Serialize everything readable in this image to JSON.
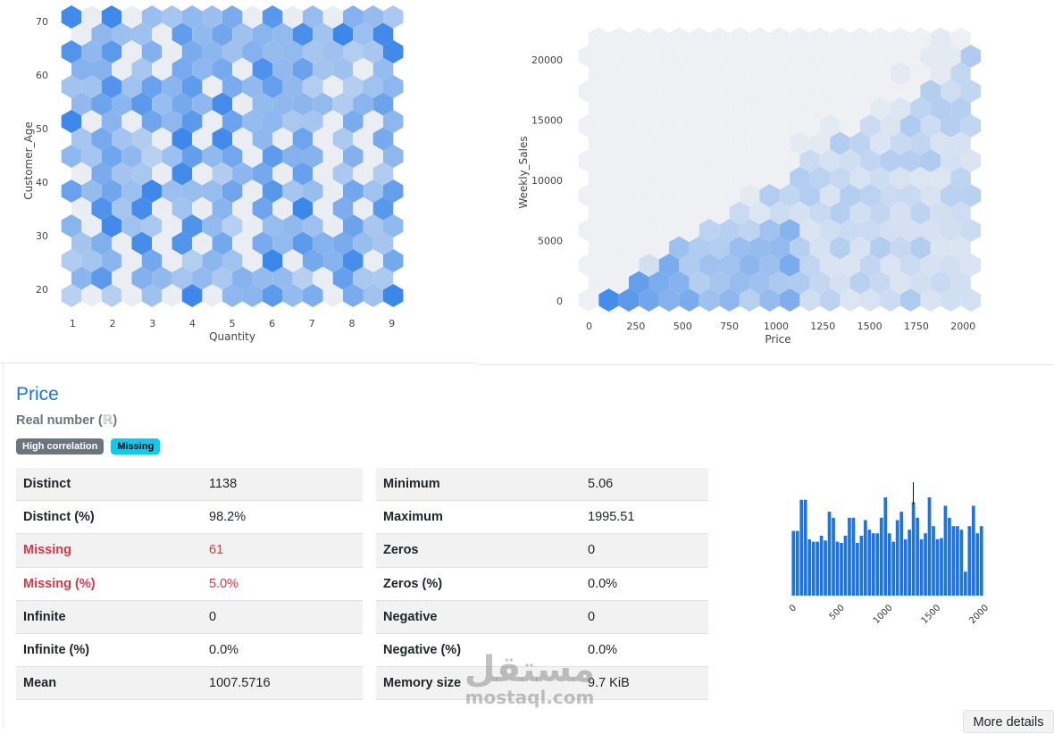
{
  "chart_data": [
    {
      "type": "hexbin",
      "xlabel": "Quantity",
      "ylabel": "Customer_Age",
      "xticks": [
        1,
        2,
        3,
        4,
        5,
        6,
        7,
        8,
        9
      ],
      "yticks": [
        20,
        30,
        40,
        50,
        60,
        70
      ],
      "xlim": [
        0.7,
        9.3
      ],
      "ylim": [
        17,
        71
      ],
      "color": "#1a73e8"
    },
    {
      "type": "hexbin",
      "xlabel": "Price",
      "ylabel": "Weekly_Sales",
      "xticks": [
        0,
        250,
        500,
        750,
        1000,
        1250,
        1500,
        1750,
        2000
      ],
      "yticks": [
        0,
        5000,
        10000,
        15000,
        20000
      ],
      "xlim": [
        -60,
        2080
      ],
      "ylim": [
        -800,
        22000
      ],
      "color": "#1a73e8"
    },
    {
      "type": "bar",
      "title": "",
      "xticks": [
        0,
        500,
        1000,
        1500,
        2000
      ],
      "values": [
        54,
        54,
        80,
        80,
        47,
        45,
        45,
        50,
        46,
        70,
        65,
        45,
        44,
        50,
        65,
        65,
        44,
        50,
        63,
        55,
        52,
        52,
        65,
        82,
        52,
        45,
        63,
        70,
        47,
        55,
        78,
        65,
        47,
        52,
        82,
        58,
        47,
        48,
        75,
        65,
        58,
        58,
        55,
        20,
        58,
        75,
        52,
        58
      ],
      "color": "#1a73e8"
    }
  ],
  "variable": {
    "name": "Price",
    "type_label": "Real number (",
    "type_symbol": "ℝ",
    "type_close": ")",
    "badges": [
      "High correlation",
      "Missing"
    ]
  },
  "stats_left": [
    {
      "key": "Distinct",
      "value": "1138",
      "alert": false
    },
    {
      "key": "Distinct (%)",
      "value": "98.2%",
      "alert": false
    },
    {
      "key": "Missing",
      "value": "61",
      "alert": true
    },
    {
      "key": "Missing (%)",
      "value": "5.0%",
      "alert": true
    },
    {
      "key": "Infinite",
      "value": "0",
      "alert": false
    },
    {
      "key": "Infinite (%)",
      "value": "0.0%",
      "alert": false
    },
    {
      "key": "Mean",
      "value": "1007.5716",
      "alert": false
    }
  ],
  "stats_right": [
    {
      "key": "Minimum",
      "value": "5.06"
    },
    {
      "key": "Maximum",
      "value": "1995.51"
    },
    {
      "key": "Zeros",
      "value": "0"
    },
    {
      "key": "Zeros (%)",
      "value": "0.0%"
    },
    {
      "key": "Negative",
      "value": "0"
    },
    {
      "key": "Negative (%)",
      "value": "0.0%"
    },
    {
      "key": "Memory size",
      "value": "9.7 KiB"
    }
  ],
  "watermark": {
    "arabic": "مستقل",
    "latin": "mostaql.com"
  },
  "more_details_label": "More details"
}
